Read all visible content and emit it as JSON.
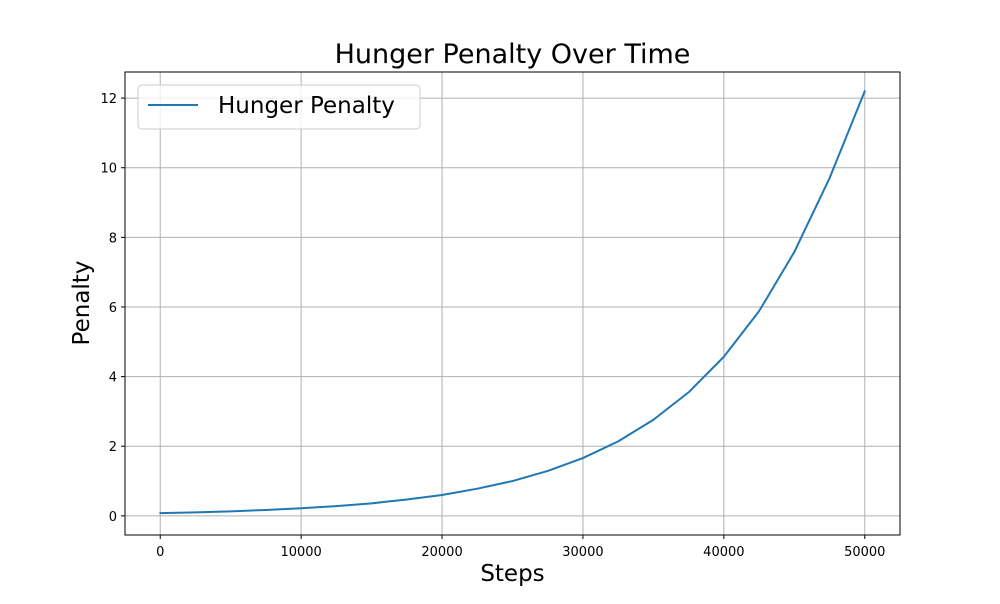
{
  "chart_data": {
    "type": "line",
    "title": "Hunger Penalty Over Time",
    "xlabel": "Steps",
    "ylabel": "Penalty",
    "xlim": [
      -2500,
      52500
    ],
    "ylim": [
      -0.55,
      12.75
    ],
    "xticks": [
      0,
      10000,
      20000,
      30000,
      40000,
      50000
    ],
    "yticks": [
      0,
      2,
      4,
      6,
      8,
      10,
      12
    ],
    "xtick_labels": [
      "0",
      "10000",
      "20000",
      "30000",
      "40000",
      "50000"
    ],
    "ytick_labels": [
      "0",
      "2",
      "4",
      "6",
      "8",
      "10",
      "12"
    ],
    "grid": true,
    "legend": {
      "position": "top-left"
    },
    "series": [
      {
        "name": "Hunger Penalty",
        "color": "#1f77b4",
        "x": [
          0,
          2500,
          5000,
          7500,
          10000,
          12500,
          15000,
          17500,
          20000,
          22500,
          25000,
          27500,
          30000,
          32500,
          35000,
          37500,
          40000,
          42500,
          45000,
          47500,
          50000
        ],
        "y": [
          0.08,
          0.1,
          0.13,
          0.17,
          0.22,
          0.28,
          0.36,
          0.47,
          0.6,
          0.78,
          1.0,
          1.29,
          1.66,
          2.14,
          2.76,
          3.55,
          4.57,
          5.88,
          7.58,
          9.7,
          12.2
        ]
      }
    ]
  }
}
